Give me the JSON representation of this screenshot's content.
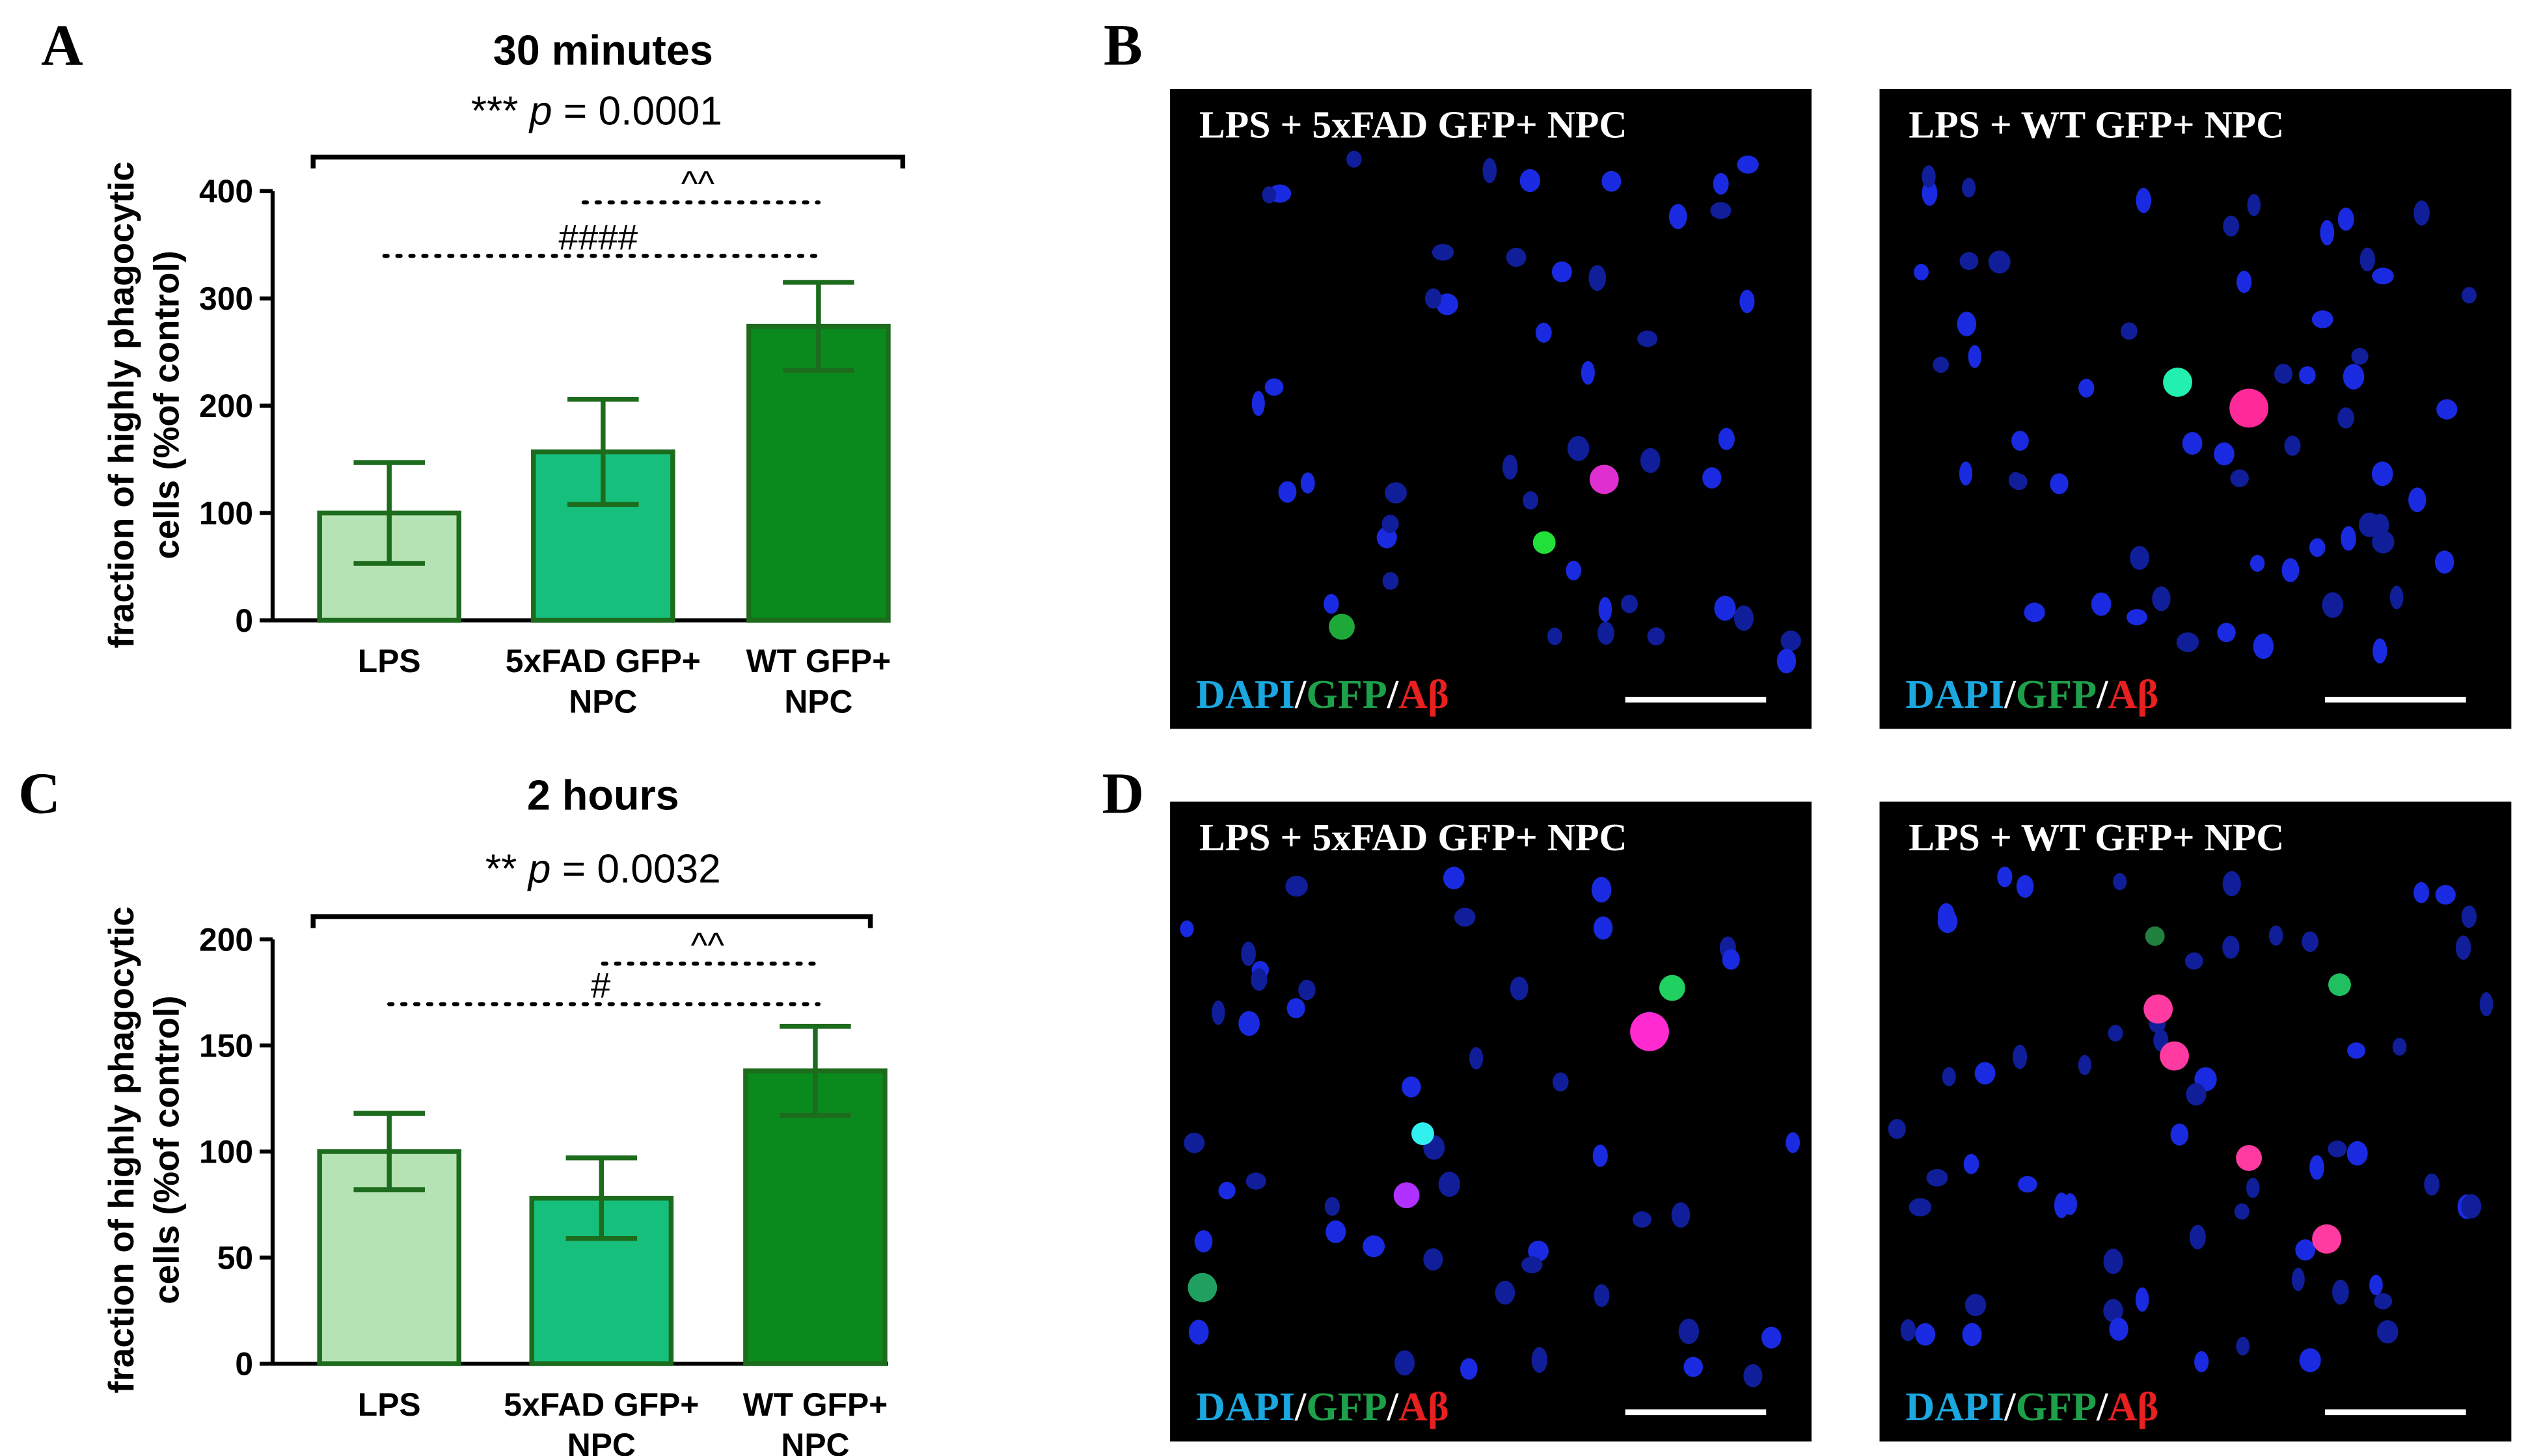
{
  "panel_labels": [
    "A",
    "B",
    "C",
    "D"
  ],
  "chart_data": [
    {
      "type": "bar",
      "title": "30 minutes",
      "y_label": [
        "fraction of highly phagocytic",
        "cells (%of control)"
      ],
      "categories": [
        [
          "LPS"
        ],
        [
          "5xFAD GFP+",
          "NPC"
        ],
        [
          "WT GFP+",
          "NPC"
        ]
      ],
      "values": [
        100,
        157,
        274
      ],
      "errors": [
        47,
        49,
        41
      ],
      "colors": [
        "#b5e3b3",
        "#16c07c",
        "#0a8a1c"
      ],
      "edge_color": "#1d6b1d",
      "ylim": [
        0,
        400
      ],
      "yticks": [
        0,
        100,
        200,
        300,
        400
      ],
      "overall_test": [
        "***",
        "p",
        "= 0.0001"
      ],
      "comparison_labels": [
        "^^",
        "####"
      ]
    },
    {
      "type": "bar",
      "title": "2 hours",
      "y_label": [
        "fraction of highly phagocytic",
        "cells (%of control)"
      ],
      "categories": [
        [
          "LPS"
        ],
        [
          "5xFAD GFP+",
          "NPC"
        ],
        [
          "WT GFP+",
          "NPC"
        ]
      ],
      "values": [
        100,
        78,
        138
      ],
      "errors": [
        18,
        19,
        21
      ],
      "colors": [
        "#b5e3b3",
        "#16c07c",
        "#0a8a1c"
      ],
      "edge_color": "#1d6b1d",
      "ylim": [
        0,
        200
      ],
      "yticks": [
        0,
        50,
        100,
        150,
        200
      ],
      "overall_test": [
        "**",
        "p",
        "= 0.0032"
      ],
      "comparison_labels": [
        "^^",
        "#"
      ]
    }
  ],
  "image_panels": [
    {
      "title": "LPS + 5xFAD GFP+ NPC",
      "stain": [
        "DAPI",
        "/",
        "GFP",
        "/",
        "Aβ"
      ]
    },
    {
      "title": "LPS + WT GFP+ NPC",
      "stain": [
        "DAPI",
        "/",
        "GFP",
        "/",
        "Aβ"
      ]
    },
    {
      "title": "LPS + 5xFAD GFP+ NPC",
      "stain": [
        "DAPI",
        "/",
        "GFP",
        "/",
        "Aβ"
      ]
    },
    {
      "title": "LPS + WT GFP+ NPC",
      "stain": [
        "DAPI",
        "/",
        "GFP",
        "/",
        "Aβ"
      ]
    }
  ]
}
